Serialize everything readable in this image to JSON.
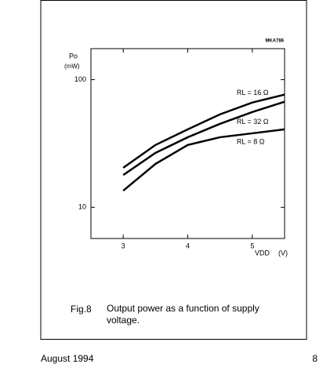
{
  "chart_data": {
    "type": "line",
    "figure_id": "MKA786",
    "y_label": "Po",
    "y_unit": "(mW)",
    "x_label": "VDD",
    "x_unit": "(V)",
    "x": [
      3,
      3.5,
      4,
      4.5,
      5,
      5.5
    ],
    "series": [
      {
        "name": "RL = 16 Ω",
        "color": "#000000",
        "values": [
          20.4,
          30.8,
          40.8,
          53.5,
          66.2,
          76.4
        ]
      },
      {
        "name": "RL = 32 Ω",
        "color": "#000000",
        "values": [
          17.9,
          26.7,
          35.4,
          45.1,
          55.8,
          67.1
        ]
      },
      {
        "name": "RL = 8 Ω",
        "color": "#000000",
        "values": [
          13.5,
          21.9,
          30.8,
          35.4,
          38.0,
          40.8
        ]
      }
    ],
    "xlim": [
      2.5,
      5.5
    ],
    "xticks": [
      3,
      4,
      5
    ],
    "ylim": [
      5.7,
      175
    ],
    "yticks": [
      10,
      100
    ],
    "y_scale": "log",
    "grid": false,
    "caption_label": "Fig.8",
    "caption": "Output power as a function of supply voltage."
  },
  "footer": {
    "date": "August 1994",
    "page": "8"
  }
}
